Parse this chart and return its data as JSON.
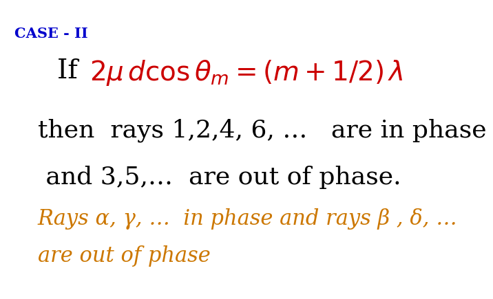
{
  "background_color": "#ffffff",
  "case_label": "CASE - II",
  "case_color": "#0000cc",
  "case_fontsize": 15,
  "line1_if_text": "If  ",
  "line1_if_color": "#000000",
  "line1_formula": "$2\\mu\\,d\\cos\\theta_m = (m+1/2)\\,\\lambda$",
  "line1_formula_color": "#cc0000",
  "line1_fontsize": 28,
  "line2_text": "then  rays 1,2,4, 6, …   are in phase",
  "line2_color": "#000000",
  "line2_fontsize": 26,
  "line3_text": " and 3,5,…  are out of phase.",
  "line3_color": "#000000",
  "line3_fontsize": 26,
  "line4_text": "Rays α, γ, …  in phase and rays β , δ, …",
  "line4_color": "#cc7700",
  "line4_fontsize": 22,
  "line5_text": "are out of phase",
  "line5_color": "#cc7700",
  "line5_fontsize": 22
}
